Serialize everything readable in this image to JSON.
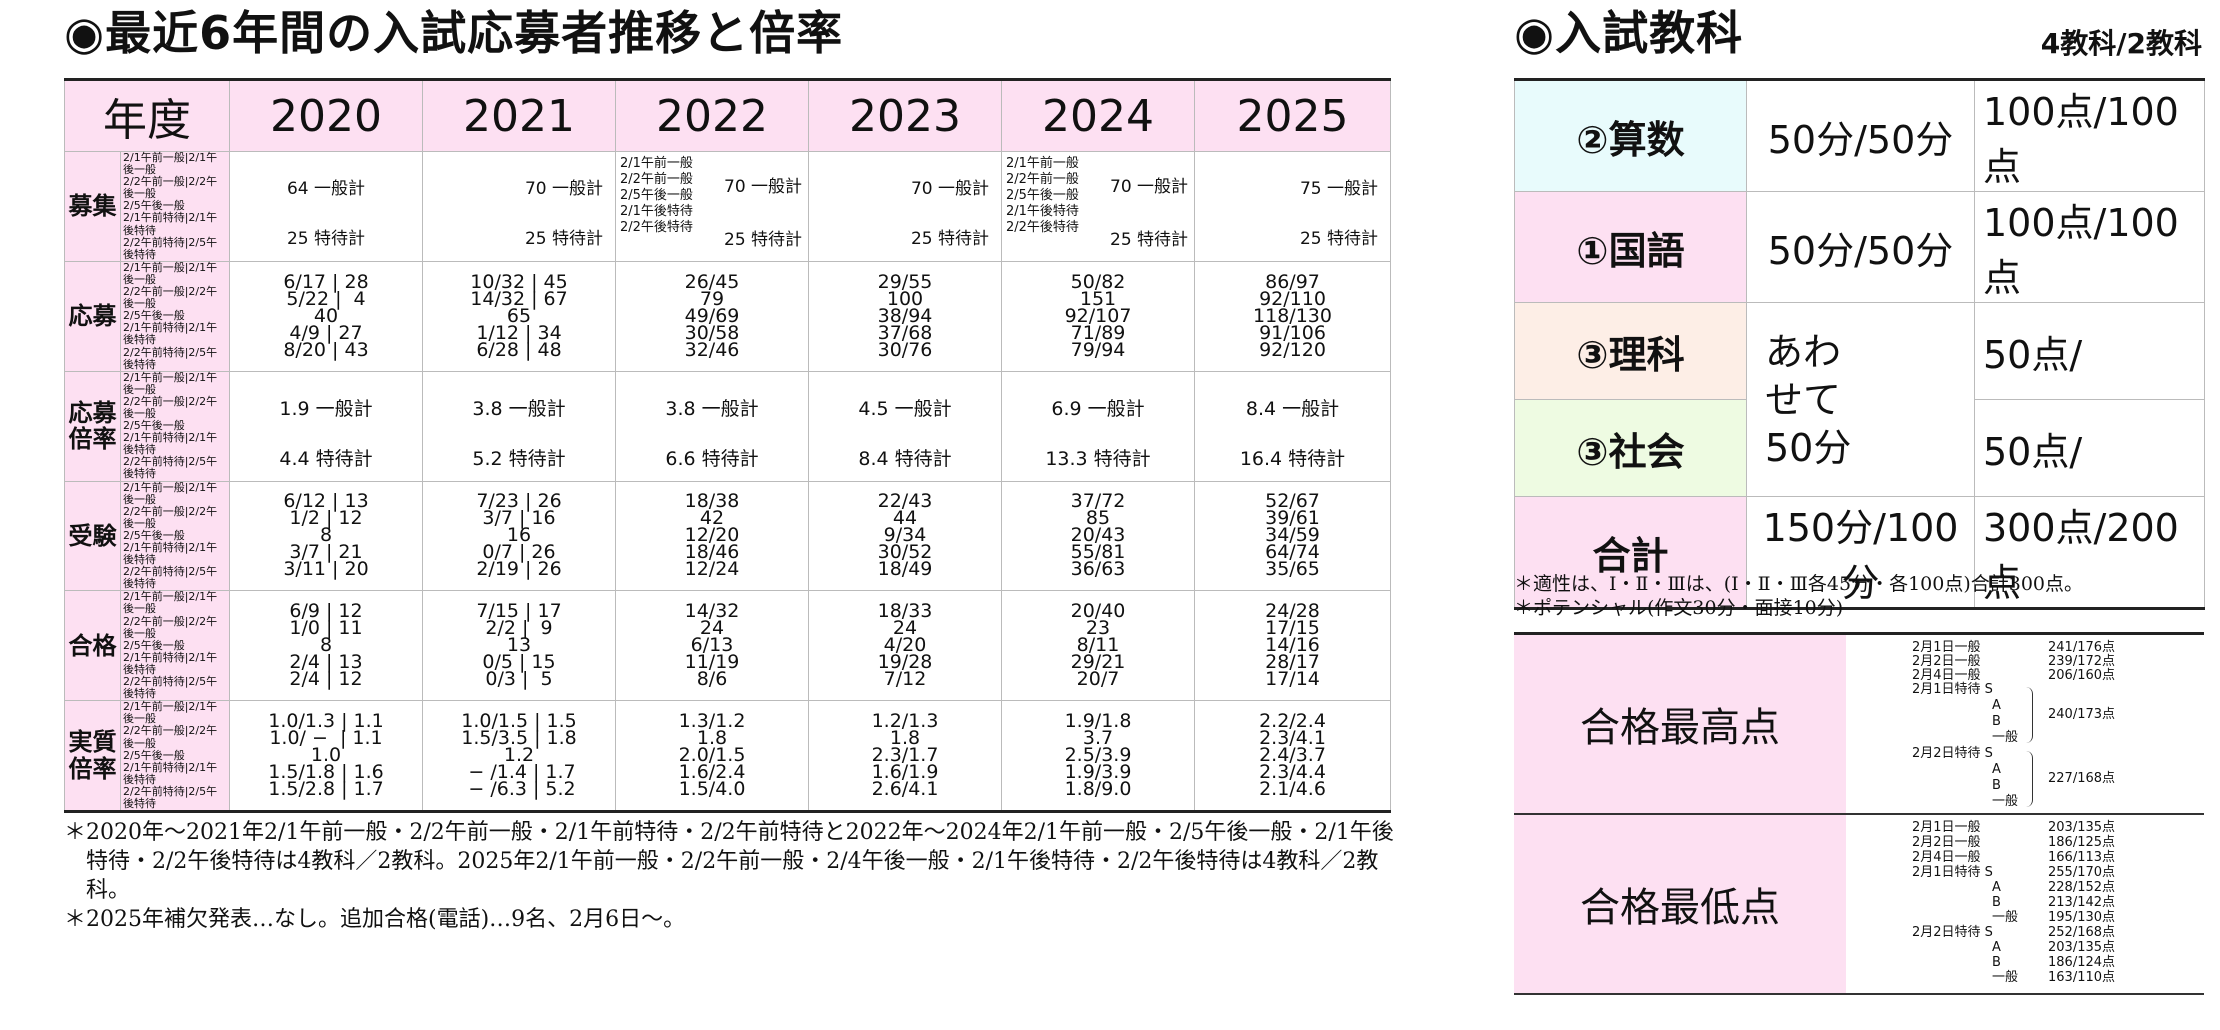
{
  "left_title": "◉最近6年間の入試応募者推移と倍率",
  "right_title": "◉入試教科",
  "subjects_count": "4教科/2教科",
  "stats": {
    "year_header": "年度",
    "years": [
      "2020",
      "2021",
      "2022",
      "2023",
      "2024",
      "2025"
    ],
    "row_labels": {
      "recruit": "募集",
      "apply": "応募",
      "ratio": "応募\n倍率",
      "exam": "受験",
      "pass": "合格",
      "actual": "実質\n倍率"
    },
    "categories": "2/1午前一般|2/1午後一般\n2/2午前一般|2/2午後一般\n2/5午後一般\n2/1午前特待|2/1午後特待\n2/2午前特待|2/5午後特待",
    "recruit": [
      {
        "general": "64 一般計",
        "special": "25 特待計"
      },
      {
        "general": "70 一般計",
        "special": "25 特待計"
      },
      {
        "mini": "2/1午前一般\n2/2午前一般\n2/5午後一般\n2/1午後特待\n2/2午後特待",
        "general": "70 一般計",
        "special": "25 特待計"
      },
      {
        "general": "70 一般計",
        "special": "25 特待計"
      },
      {
        "mini": "2/1午前一般\n2/2午前一般\n2/5午後一般\n2/1午後特待\n2/2午後特待",
        "general": "70 一般計",
        "special": "25 特待計"
      },
      {
        "general": "75 一般計",
        "special": "25 特待計"
      }
    ],
    "apply": [
      "6/17 | 28\n5/22 |  4\n40\n4/9 | 27\n8/20 | 43",
      "10/32 | 45\n14/32 | 67\n65\n1/12 | 34\n6/28 | 48",
      "26/45\n79\n49/69\n30/58\n32/46",
      "29/55\n100\n38/94\n37/68\n30/76",
      "50/82\n151\n92/107\n71/89\n79/94",
      "86/97\n92/110\n118/130\n91/106\n92/120"
    ],
    "ratio": [
      {
        "general": "1.9 一般計",
        "special": "4.4 特待計"
      },
      {
        "general": "3.8 一般計",
        "special": "5.2 特待計"
      },
      {
        "general": "3.8 一般計",
        "special": "6.6 特待計"
      },
      {
        "general": "4.5 一般計",
        "special": "8.4 特待計"
      },
      {
        "general": "6.9 一般計",
        "special": "13.3 特待計"
      },
      {
        "general": "8.4 一般計",
        "special": "16.4 特待計"
      }
    ],
    "exam": [
      "6/12 | 13\n1/2 | 12\n8\n3/7 | 21\n3/11 | 20",
      "7/23 | 26\n3/7 | 16\n16\n0/7 | 26\n2/19 | 26",
      "18/38\n42\n12/20\n18/46\n12/24",
      "22/43\n44\n9/34\n30/52\n18/49",
      "37/72\n85\n20/43\n55/81\n36/63",
      "52/67\n39/61\n34/59\n64/74\n35/65"
    ],
    "pass": [
      "6/9 | 12\n1/0 | 11\n8\n2/4 | 13\n2/4 | 12",
      "7/15 | 17\n2/2 |  9\n13\n0/5 | 15\n0/3 |  5",
      "14/32\n24\n6/13\n11/19\n8/6",
      "18/33\n24\n4/20\n19/28\n7/12",
      "20/40\n23\n8/11\n29/21\n20/7",
      "24/28\n17/15\n14/16\n28/17\n17/14"
    ],
    "actual": [
      "1.0/1.3 | 1.1\n1.0/ −  | 1.1\n1.0\n1.5/1.8 | 1.6\n1.5/2.8 | 1.7",
      "1.0/1.5 | 1.5\n1.5/3.5 | 1.8\n1.2\n − /1.4 | 1.7\n − /6.3 | 5.2",
      "1.3/1.2\n1.8\n2.0/1.5\n1.6/2.4\n1.5/4.0",
      "1.2/1.3\n1.8\n2.3/1.7\n1.6/1.9\n2.6/4.1",
      "1.9/1.8\n3.7\n2.5/3.9\n1.9/3.9\n1.8/9.0",
      "2.2/2.4\n2.3/4.1\n2.4/3.7\n2.3/4.4\n2.1/4.6"
    ]
  },
  "notes": [
    "＊2020年～2021年2/1午前一般・2/2午前一般・2/1午前特待・2/2午前特待と2022年～2024年2/1午前一般・2/5午後一般・2/1午後特待・2/2午後特待は4教科／2教科。2025年2/1午前一般・2/2午前一般・2/4午後一般・2/1午後特待・2/2午後特待は4教科／2教科。",
    "＊2025年補欠発表…なし。追加合格(電話)…9名、2月6日～。"
  ],
  "subjects": {
    "math": {
      "name": "②算数",
      "time": "50分/50分",
      "points": "100点/100点"
    },
    "japanese": {
      "name": "①国語",
      "time": "50分/50分",
      "points": "100点/100点"
    },
    "science": {
      "name": "③理科",
      "points": "50点/"
    },
    "social": {
      "name": "③社会",
      "points": "50点/"
    },
    "combined_time": "あわ\nせて\n50分",
    "total": {
      "name": "合計",
      "time": "150分/100分",
      "points": "300点/200点"
    }
  },
  "subject_notes": [
    "＊適性は、Ⅰ・Ⅱ・Ⅲは、(Ⅰ・Ⅱ・Ⅲ各45分・各100点)合計300点。",
    "＊ポテンシャル(作文30分・面接10分)"
  ],
  "scores": {
    "max": {
      "label": "合格最高点",
      "items": [
        "2月1日一般",
        "2月2日一般",
        "2月4日一般",
        "2月1日特待 S",
        "A",
        "B",
        "一般",
        "2月2日特待 S",
        "A",
        "B",
        "一般"
      ],
      "values": [
        "241/176点",
        "239/172点",
        "206/160点",
        "240/173点",
        "227/168点"
      ]
    },
    "min": {
      "label": "合格最低点",
      "items": [
        "2月1日一般",
        "2月2日一般",
        "2月4日一般",
        "2月1日特待 S",
        "A",
        "B",
        "一般",
        "2月2日特待 S",
        "A",
        "B",
        "一般"
      ],
      "values": [
        "203/135点",
        "186/125点",
        "166/113点",
        "255/170点",
        "228/152点",
        "213/142点",
        "195/130点",
        "252/168点",
        "203/135点",
        "186/124点",
        "163/110点"
      ]
    }
  }
}
